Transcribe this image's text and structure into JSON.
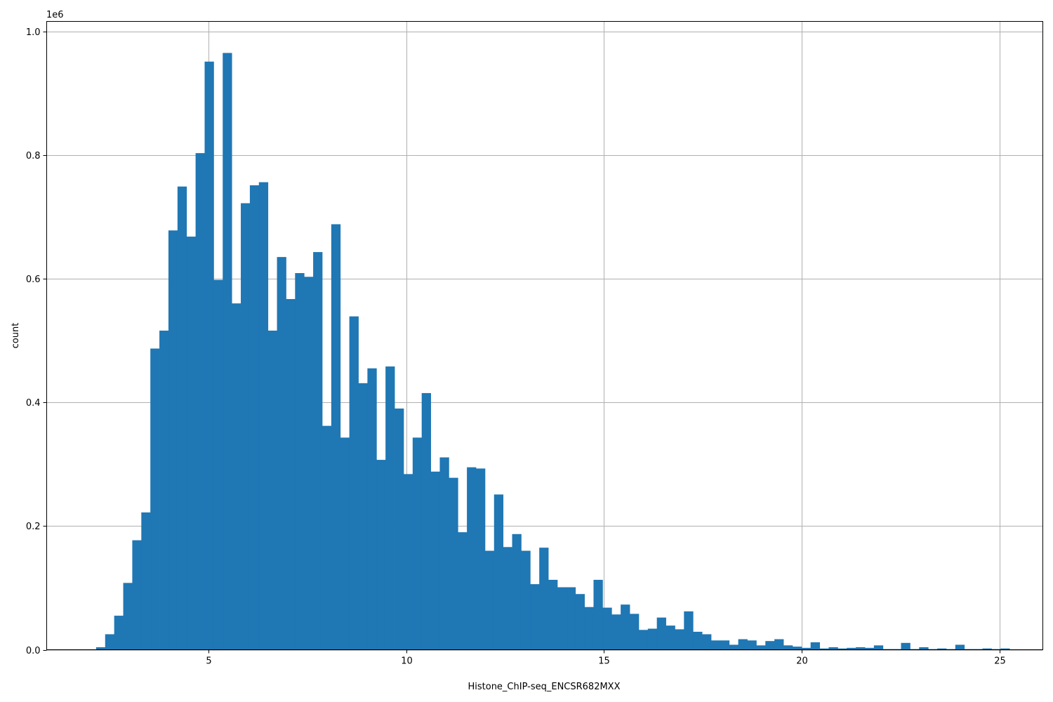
{
  "chart_data": {
    "type": "bar",
    "subtype": "histogram",
    "title": "",
    "xlabel": "Histone_ChIP-seq_ENCSR682MXX",
    "ylabel": "count",
    "y_offset_text": "1e6",
    "xlim": [
      0.9,
      26.1
    ],
    "ylim": [
      0,
      1.016
    ],
    "x_ticks": [
      5,
      10,
      15,
      20,
      25
    ],
    "x_tick_labels": [
      "5",
      "10",
      "15",
      "20",
      "25"
    ],
    "y_ticks": [
      0,
      0.2,
      0.4,
      0.6,
      0.8,
      1.0
    ],
    "y_tick_labels": [
      "0.0",
      "0.2",
      "0.4",
      "0.6",
      "0.8",
      "1.0"
    ],
    "grid": true,
    "bar_color": "#1f77b4",
    "bin_start": 2.15,
    "bin_width": 0.2288,
    "values_unit": "millions",
    "values": [
      0.004,
      0.025,
      0.055,
      0.108,
      0.177,
      0.222,
      0.487,
      0.516,
      0.678,
      0.749,
      0.668,
      0.803,
      0.951,
      0.598,
      0.965,
      0.56,
      0.722,
      0.751,
      0.756,
      0.516,
      0.635,
      0.567,
      0.609,
      0.603,
      0.643,
      0.362,
      0.688,
      0.343,
      0.539,
      0.431,
      0.455,
      0.307,
      0.458,
      0.39,
      0.284,
      0.343,
      0.415,
      0.288,
      0.311,
      0.278,
      0.19,
      0.295,
      0.293,
      0.16,
      0.251,
      0.166,
      0.187,
      0.16,
      0.106,
      0.165,
      0.113,
      0.101,
      0.101,
      0.09,
      0.069,
      0.113,
      0.068,
      0.057,
      0.073,
      0.058,
      0.032,
      0.034,
      0.052,
      0.039,
      0.033,
      0.062,
      0.029,
      0.025,
      0.015,
      0.015,
      0.008,
      0.017,
      0.015,
      0.007,
      0.014,
      0.017,
      0.007,
      0.005,
      0.003,
      0.012,
      0.002,
      0.004,
      0.002,
      0.003,
      0.004,
      0.003,
      0.007,
      0.001,
      0.001,
      0.011,
      0.001,
      0.004,
      0.001,
      0.002,
      0.001,
      0.008,
      0.001,
      0.001,
      0.002,
      0.001,
      0.002
    ]
  }
}
